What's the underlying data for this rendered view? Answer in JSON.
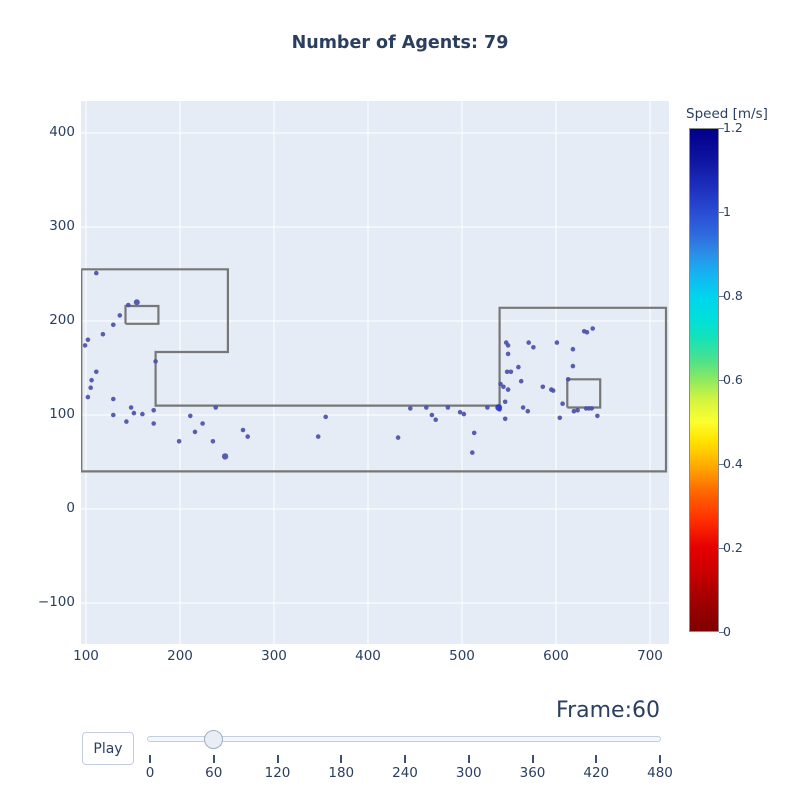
{
  "title": "Number of Agents: 79",
  "controls": {
    "play_label": "Play",
    "frame_label": "Frame:60",
    "slider": {
      "current_value": 60,
      "min": 0,
      "max": 480,
      "tick_values": [
        0,
        60,
        120,
        180,
        240,
        300,
        360,
        420,
        480
      ],
      "tick_labels": [
        "0",
        "60",
        "120",
        "180",
        "240",
        "300",
        "360",
        "420",
        "480"
      ]
    }
  },
  "colors": {
    "text": "#2a3f5f",
    "plot_background": "#e5ecf6",
    "gridline": "#ffffff",
    "wall": "#777777",
    "marker_default": "#4c51a8"
  },
  "chart_data": {
    "type": "scatter",
    "title": "Number of Agents: 79",
    "xlabel": "",
    "ylabel": "",
    "grid": true,
    "x_range": [
      94.7,
      720
    ],
    "y_range": [
      -143.6,
      434
    ],
    "x_tick_values": [
      100,
      200,
      300,
      400,
      500,
      600,
      700
    ],
    "x_tick_labels": [
      "100",
      "200",
      "300",
      "400",
      "500",
      "600",
      "700"
    ],
    "y_tick_values": [
      400,
      300,
      200,
      100,
      0,
      -100
    ],
    "y_tick_labels": [
      "400",
      "300",
      "200",
      "100",
      "0",
      "−100"
    ],
    "colorbar": {
      "title": "Speed [m/s]",
      "min": 0,
      "max": 1.2,
      "tick_values": [
        0,
        0.2,
        0.4,
        0.6,
        0.8,
        1,
        1.2
      ],
      "tick_labels": [
        "0",
        "0.2",
        "0.4",
        "0.6",
        "0.8",
        "1",
        "1.2"
      ],
      "gradient_stops": [
        {
          "p": 0,
          "c": "#7f0000"
        },
        {
          "p": 6,
          "c": "#a00000"
        },
        {
          "p": 12,
          "c": "#cc0000"
        },
        {
          "p": 16.7,
          "c": "#e60000"
        },
        {
          "p": 22,
          "c": "#ff2e00"
        },
        {
          "p": 28,
          "c": "#ff6a00"
        },
        {
          "p": 33.3,
          "c": "#ffb000"
        },
        {
          "p": 38,
          "c": "#ffe400"
        },
        {
          "p": 41.7,
          "c": "#fbff2e"
        },
        {
          "p": 46,
          "c": "#d4f43e"
        },
        {
          "p": 50,
          "c": "#8fe95f"
        },
        {
          "p": 54,
          "c": "#4ce18c"
        },
        {
          "p": 58.3,
          "c": "#15e2b7"
        },
        {
          "p": 62,
          "c": "#00e0d8"
        },
        {
          "p": 66.7,
          "c": "#00d4ee"
        },
        {
          "p": 71,
          "c": "#14b4f2"
        },
        {
          "p": 75,
          "c": "#2a90e8"
        },
        {
          "p": 79,
          "c": "#2f6ade"
        },
        {
          "p": 83.3,
          "c": "#2a4cd4"
        },
        {
          "p": 89,
          "c": "#1b2cba"
        },
        {
          "p": 94,
          "c": "#0d14a0"
        },
        {
          "p": 100,
          "c": "#00008b"
        }
      ]
    },
    "walls": [
      [
        [
          95,
          255
        ],
        [
          251,
          255
        ],
        [
          251,
          167
        ],
        [
          174,
          167
        ],
        [
          174,
          110
        ],
        [
          540,
          110
        ],
        [
          540,
          214
        ],
        [
          717,
          214
        ],
        [
          717,
          40
        ],
        [
          95,
          40
        ],
        [
          95,
          255
        ]
      ],
      [
        [
          142,
          197
        ],
        [
          177,
          197
        ],
        [
          177,
          216
        ],
        [
          142,
          216
        ],
        [
          142,
          197
        ]
      ],
      [
        [
          612,
          108
        ],
        [
          647,
          108
        ],
        [
          647,
          138
        ],
        [
          612,
          138
        ],
        [
          612,
          108
        ]
      ]
    ],
    "agents": [
      [
        111,
        251
      ],
      [
        145,
        217
      ],
      [
        154,
        220,
        3
      ],
      [
        136,
        206
      ],
      [
        129,
        196
      ],
      [
        118,
        186
      ],
      [
        102,
        180
      ],
      [
        99,
        174
      ],
      [
        111,
        146
      ],
      [
        106,
        137
      ],
      [
        105,
        129
      ],
      [
        102,
        119
      ],
      [
        129,
        117
      ],
      [
        129,
        100
      ],
      [
        148,
        108
      ],
      [
        143,
        93
      ],
      [
        151,
        102
      ],
      [
        160,
        101
      ],
      [
        172,
        105
      ],
      [
        172,
        91
      ],
      [
        174,
        157
      ],
      [
        211,
        99
      ],
      [
        199,
        72
      ],
      [
        224,
        91
      ],
      [
        216,
        82
      ],
      [
        235,
        72
      ],
      [
        248,
        56,
        3.2
      ],
      [
        238,
        108
      ],
      [
        267,
        84
      ],
      [
        272,
        77
      ],
      [
        347,
        77
      ],
      [
        355,
        98
      ],
      [
        432,
        76
      ],
      [
        445,
        107
      ],
      [
        462,
        108
      ],
      [
        468,
        100
      ],
      [
        472,
        95
      ],
      [
        485,
        108
      ],
      [
        498,
        103
      ],
      [
        502,
        101
      ],
      [
        513,
        81
      ],
      [
        511,
        60
      ],
      [
        527,
        108
      ],
      [
        539,
        108,
        3.4,
        "#2734cb"
      ],
      [
        540,
        106,
        2.2,
        "#2f3cd0"
      ],
      [
        546,
        114
      ],
      [
        546,
        96
      ],
      [
        547,
        177
      ],
      [
        549,
        174
      ],
      [
        549,
        165
      ],
      [
        548,
        146
      ],
      [
        552,
        146
      ],
      [
        560,
        151
      ],
      [
        541,
        133
      ],
      [
        544,
        130
      ],
      [
        549,
        127
      ],
      [
        563,
        136
      ],
      [
        565,
        108
      ],
      [
        570,
        104
      ],
      [
        571,
        177
      ],
      [
        576,
        172
      ],
      [
        586,
        130
      ],
      [
        595,
        127
      ],
      [
        597,
        126
      ],
      [
        601,
        177
      ],
      [
        604,
        97
      ],
      [
        607,
        112
      ],
      [
        613,
        138
      ],
      [
        618,
        170
      ],
      [
        618,
        152
      ],
      [
        619,
        104
      ],
      [
        623,
        105
      ],
      [
        630,
        189
      ],
      [
        633,
        188
      ],
      [
        639,
        192
      ],
      [
        632,
        107
      ],
      [
        635,
        107
      ],
      [
        638,
        107
      ],
      [
        644,
        99
      ]
    ]
  }
}
